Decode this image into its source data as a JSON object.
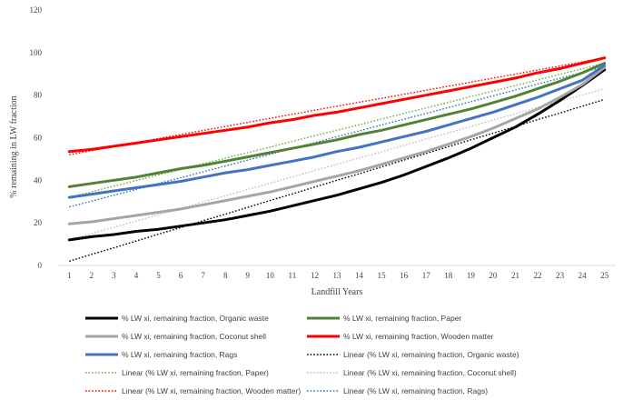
{
  "chart_data": {
    "type": "line",
    "title": "",
    "xlabel": "Landfill Years",
    "ylabel": "% remaining in LW fraction",
    "ylim": [
      0,
      120
    ],
    "y_ticks": [
      0,
      20,
      40,
      60,
      80,
      100,
      120
    ],
    "x": [
      1,
      2,
      3,
      4,
      5,
      6,
      7,
      8,
      9,
      10,
      11,
      12,
      13,
      14,
      15,
      16,
      17,
      18,
      19,
      20,
      21,
      22,
      23,
      24,
      25
    ],
    "grid": false,
    "legend_position": "bottom",
    "series": [
      {
        "name": "% LW xi, remaining fraction, Organic waste",
        "color": "#000000",
        "style": "solid",
        "values": [
          12,
          13.5,
          14.5,
          16,
          17,
          18.5,
          20,
          21.5,
          23.5,
          25.5,
          28,
          30.5,
          33,
          36,
          39,
          42.5,
          46.5,
          50.5,
          55,
          60,
          65,
          71,
          77.5,
          84.5,
          92
        ]
      },
      {
        "name": "% LW xi, remaining fraction, Paper",
        "color": "#548235",
        "style": "solid",
        "values": [
          37,
          38.5,
          40,
          41.5,
          43.5,
          45.5,
          47,
          49,
          51,
          53,
          55,
          57,
          59,
          61.5,
          63.5,
          66,
          68.5,
          71,
          73.5,
          76.5,
          79.5,
          83,
          86.5,
          90.5,
          95
        ]
      },
      {
        "name": "% LW xi, remaining  fraction, Coconut shell",
        "color": "#a6a6a6",
        "style": "solid",
        "values": [
          19.5,
          20.5,
          22,
          23.5,
          25,
          26.5,
          28.5,
          30.5,
          32.5,
          34.5,
          37,
          39.5,
          42,
          44.5,
          47.5,
          50.5,
          53.5,
          57,
          60.5,
          64.5,
          69,
          73.5,
          79,
          85,
          93
        ]
      },
      {
        "name": "% LW xi, remaining fraction, Wooden matter",
        "color": "#ff0000",
        "style": "solid",
        "values": [
          53.5,
          54.5,
          56,
          57.5,
          59,
          60.5,
          62,
          63.5,
          65,
          67,
          68.5,
          70.5,
          72,
          74,
          76,
          78,
          80,
          82,
          84,
          86,
          88,
          90.5,
          92.5,
          95,
          97.5
        ]
      },
      {
        "name": "% LW xi, remaining fraction, Rags",
        "color": "#4472c4",
        "style": "solid",
        "values": [
          32,
          33.5,
          35,
          36.5,
          38,
          39.5,
          41.5,
          43.5,
          45,
          47,
          49,
          51,
          53.5,
          55.5,
          58,
          60.5,
          63,
          66,
          69,
          72,
          75.5,
          79,
          83,
          87,
          94
        ]
      },
      {
        "name": "Linear (% LW xi, remaining fraction, Organic waste)",
        "color": "#000000",
        "style": "dotted",
        "values": [
          2,
          5.2,
          8.3,
          11.5,
          14.7,
          17.8,
          21,
          24.1,
          27.3,
          30.5,
          33.6,
          36.8,
          40,
          43.1,
          46.3,
          49.5,
          52.6,
          55.8,
          59,
          62.1,
          65.3,
          68.5,
          71.6,
          74.8,
          78
        ]
      },
      {
        "name": "Linear (% LW xi, remaining fraction, Paper)",
        "color": "#70ad47",
        "style": "dotted",
        "values": [
          32,
          34.6,
          37.3,
          39.9,
          42.5,
          45.1,
          47.8,
          50.4,
          53,
          55.6,
          58.3,
          60.9,
          63.5,
          66.1,
          68.8,
          71.4,
          74,
          76.6,
          79.3,
          81.9,
          84.5,
          87.1,
          89.8,
          92.4,
          95
        ]
      },
      {
        "name": "Linear (% LW xi, remaining  fraction, Coconut shell)",
        "color": "#bfbfbf",
        "style": "dotted",
        "values": [
          12,
          15,
          17.9,
          20.9,
          23.8,
          26.8,
          29.8,
          32.7,
          35.7,
          38.6,
          41.6,
          44.6,
          47.5,
          50.5,
          53.4,
          56.4,
          59.4,
          62.3,
          65.3,
          68.3,
          71.2,
          74.2,
          77.1,
          80.1,
          83
        ]
      },
      {
        "name": "Linear (% LW xi, remaining fraction, Wooden matter)",
        "color": "#ff0000",
        "style": "dotted",
        "values": [
          52,
          53.9,
          55.8,
          57.7,
          59.6,
          61.5,
          63.4,
          65.3,
          67.2,
          69.1,
          71,
          72.9,
          74.8,
          76.7,
          78.5,
          80.4,
          82.3,
          84.2,
          86.1,
          88,
          89.9,
          91.8,
          93.7,
          95.6,
          97.5
        ]
      },
      {
        "name": "Linear (% LW xi, remaining fraction, Rags)",
        "color": "#2e75b6",
        "style": "dotted",
        "values": [
          27.5,
          30.2,
          33,
          35.7,
          38.5,
          41.2,
          44,
          46.7,
          49.5,
          52.2,
          55,
          57.7,
          60.5,
          63.2,
          66,
          68.7,
          71.4,
          74.2,
          76.9,
          79.7,
          82.4,
          85.2,
          87.9,
          90.7,
          93.5
        ]
      }
    ]
  }
}
